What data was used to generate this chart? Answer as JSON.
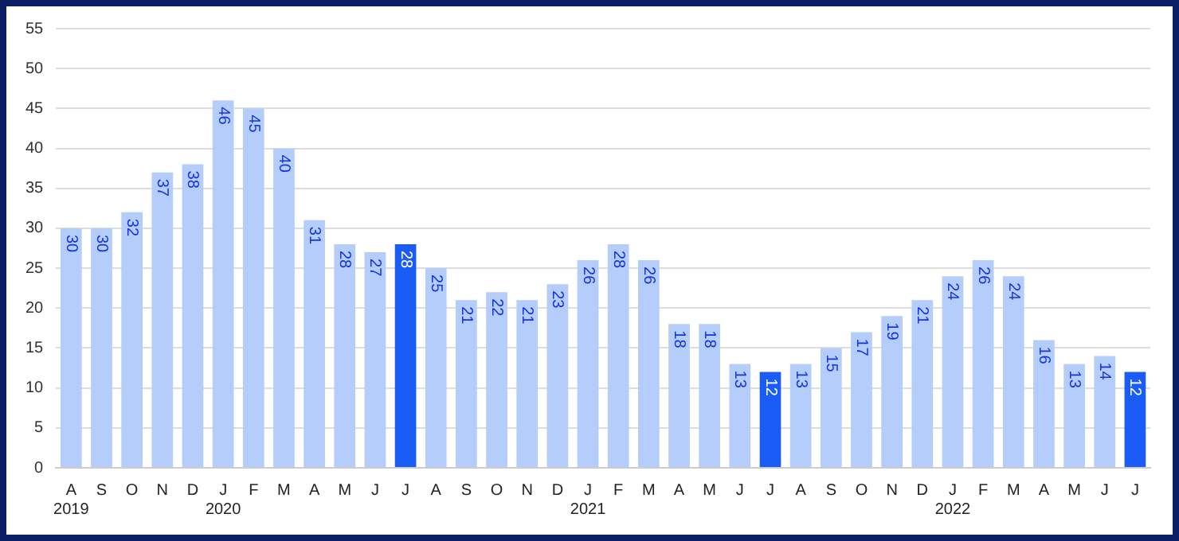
{
  "chart_data": {
    "type": "bar",
    "categories": [
      "A\n2019",
      "S",
      "O",
      "N",
      "D",
      "J\n2020",
      "F",
      "M",
      "A",
      "M",
      "J",
      "J",
      "A",
      "S",
      "O",
      "N",
      "D",
      "J\n2021",
      "F",
      "M",
      "A",
      "M",
      "J",
      "J",
      "A",
      "S",
      "O",
      "N",
      "D",
      "J\n2022",
      "F",
      "M",
      "A",
      "M",
      "J",
      "J"
    ],
    "values": [
      30,
      30,
      32,
      37,
      38,
      46,
      45,
      40,
      31,
      28,
      27,
      28,
      25,
      21,
      22,
      21,
      23,
      26,
      28,
      26,
      18,
      18,
      13,
      12,
      13,
      15,
      17,
      19,
      21,
      24,
      26,
      24,
      16,
      13,
      14,
      12
    ],
    "colors": [
      "#b5cdfa",
      "#b5cdfa",
      "#b5cdfa",
      "#b5cdfa",
      "#b5cdfa",
      "#b5cdfa",
      "#b5cdfa",
      "#b5cdfa",
      "#b5cdfa",
      "#b5cdfa",
      "#b5cdfa",
      "#1a5cf5",
      "#b5cdfa",
      "#b5cdfa",
      "#b5cdfa",
      "#b5cdfa",
      "#b5cdfa",
      "#b5cdfa",
      "#b5cdfa",
      "#b5cdfa",
      "#b5cdfa",
      "#b5cdfa",
      "#b5cdfa",
      "#1a5cf5",
      "#b5cdfa",
      "#b5cdfa",
      "#b5cdfa",
      "#b5cdfa",
      "#b5cdfa",
      "#b5cdfa",
      "#b5cdfa",
      "#b5cdfa",
      "#b5cdfa",
      "#b5cdfa",
      "#b5cdfa",
      "#1a5cf5"
    ],
    "ylim": [
      0,
      55
    ],
    "yticks": [
      0,
      5,
      10,
      15,
      20,
      25,
      30,
      35,
      40,
      45,
      50,
      55
    ],
    "grid": "y",
    "data_labels": true,
    "legend": false
  }
}
